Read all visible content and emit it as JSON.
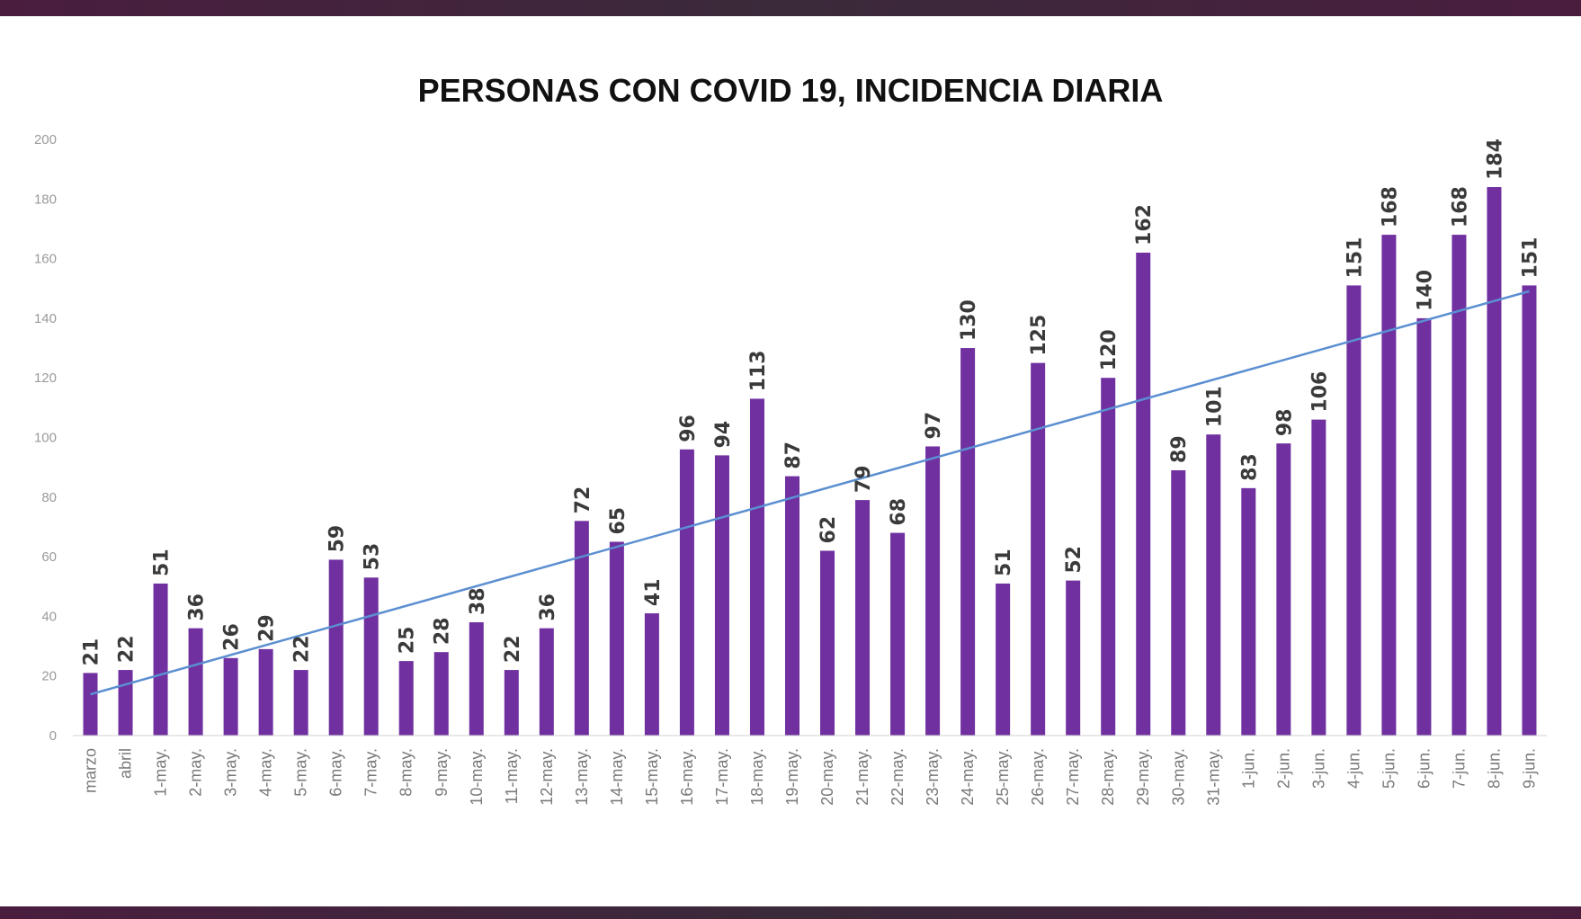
{
  "colors": {
    "bar": "#7030a0",
    "trendline": "#5b8fd1",
    "frame": "#4a1d3f"
  },
  "chart_data": {
    "type": "bar",
    "title": "PERSONAS CON COVID 19, INCIDENCIA DIARIA",
    "xlabel": "",
    "ylabel": "",
    "ylim": [
      0,
      200
    ],
    "yticks": [
      0,
      20,
      40,
      60,
      80,
      100,
      120,
      140,
      160,
      180,
      200
    ],
    "grid": false,
    "legend": "none",
    "trendline": "linear",
    "categories": [
      "marzo",
      "abril",
      "1-may.",
      "2-may.",
      "3-may.",
      "4-may.",
      "5-may.",
      "6-may.",
      "7-may.",
      "8-may.",
      "9-may.",
      "10-may.",
      "11-may.",
      "12-may.",
      "13-may.",
      "14-may.",
      "15-may.",
      "16-may.",
      "17-may.",
      "18-may.",
      "19-may.",
      "20-may.",
      "21-may.",
      "22-may.",
      "23-may.",
      "24-may.",
      "25-may.",
      "26-may.",
      "27-may.",
      "28-may.",
      "29-may.",
      "30-may.",
      "31-may.",
      "1-jun.",
      "2-jun.",
      "3-jun.",
      "4-jun.",
      "5-jun.",
      "6-jun.",
      "7-jun.",
      "8-jun.",
      "9-jun."
    ],
    "values": [
      21,
      22,
      51,
      36,
      26,
      29,
      22,
      59,
      53,
      25,
      28,
      38,
      22,
      36,
      72,
      65,
      41,
      96,
      94,
      113,
      87,
      62,
      79,
      68,
      97,
      130,
      51,
      125,
      52,
      120,
      162,
      89,
      101,
      83,
      98,
      106,
      151,
      168,
      140,
      168,
      184,
      151
    ]
  }
}
